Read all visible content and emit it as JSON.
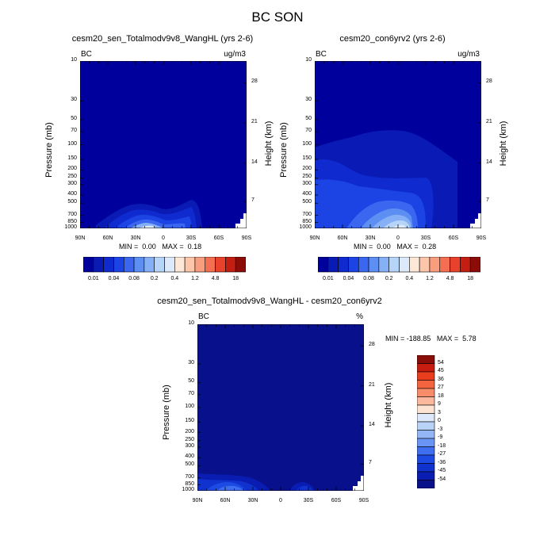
{
  "title": "BC SON",
  "colors": {
    "abs": [
      "#00009c",
      "#0a1ab4",
      "#0f2bd0",
      "#1c44e4",
      "#3a66f0",
      "#5d8ef2",
      "#86b0f5",
      "#b6d4f8",
      "#dbe9fb",
      "#fde8d8",
      "#fbc6aa",
      "#f89d7e",
      "#f46e52",
      "#e8412c",
      "#c21f12",
      "#8c0c08"
    ],
    "diff": [
      "#08108c",
      "#0a1db2",
      "#1032cf",
      "#1d4ae3",
      "#3f6ef1",
      "#6995f4",
      "#93b6f6",
      "#b9d2f8",
      "#dde9fb",
      "#fde4d2",
      "#fbb89c",
      "#f88c68",
      "#f4643f",
      "#ea3d1d",
      "#c81c10",
      "#8a0d07"
    ]
  },
  "colorbar_abs": {
    "labels": [
      "0.01",
      "0.04",
      "0.08",
      "0.2",
      "0.4",
      "1.2",
      "4.8",
      "18"
    ]
  },
  "colorbar_diff": {
    "labels": [
      "54",
      "45",
      "36",
      "27",
      "18",
      "9",
      "3",
      "0",
      "-3",
      "-9",
      "-18",
      "-27",
      "-36",
      "-45",
      "-54"
    ]
  },
  "panels": [
    {
      "title": "cesm20_sen_Totalmodv9v8_WangHL (yrs 2-6)",
      "variable": "BC",
      "units": "ug/m3",
      "min": "0.00",
      "max": "0.18",
      "ylabel": "Pressure (mb)",
      "ylabel_right": "Height (km)"
    },
    {
      "title": "cesm20_con6yrv2 (yrs 2-6)",
      "variable": "BC",
      "units": "ug/m3",
      "min": "0.00",
      "max": "0.28",
      "ylabel": "Pressure (mb)",
      "ylabel_right": "Height (km)"
    },
    {
      "title": "cesm20_sen_Totalmodv9v8_WangHL - cesm20_con6yrv2",
      "variable": "BC",
      "units": "%",
      "min": "-188.85",
      "max": "5.78",
      "ylabel": "Pressure (mb)",
      "ylabel_right": "Height (km)"
    }
  ],
  "labels": {
    "min": "MIN =",
    "max": "MAX ="
  },
  "chart_data": [
    {
      "type": "heatmap",
      "title": "cesm20_sen_Totalmodv9v8_WangHL (yrs 2-6)",
      "xlabel": "",
      "ylabel": "Pressure (mb)",
      "ylabel_right": "Height (km)",
      "x_ticks": [
        "90N",
        "60N",
        "30N",
        "0",
        "30S",
        "60S",
        "90S"
      ],
      "y_ticks": [
        "10",
        "30",
        "50",
        "70",
        "100",
        "150",
        "200",
        "250",
        "300",
        "400",
        "500",
        "700",
        "850",
        "1000"
      ],
      "y_ticks_right": [
        "28",
        "21",
        "14",
        "7"
      ],
      "xlim": [
        90,
        -90
      ],
      "ylim_mb": [
        1000,
        10
      ],
      "y_scale": "log",
      "min": 0.0,
      "max": 0.18,
      "contour_levels": [
        0.01,
        0.02,
        0.04,
        0.06,
        0.08,
        0.1,
        0.2,
        0.3,
        0.4,
        0.8,
        1.2,
        2.4,
        4.8,
        9.6,
        18
      ],
      "legend": "colorbar bottom"
    },
    {
      "type": "heatmap",
      "title": "cesm20_con6yrv2 (yrs 2-6)",
      "xlabel": "",
      "ylabel": "Pressure (mb)",
      "ylabel_right": "Height (km)",
      "x_ticks": [
        "90N",
        "60N",
        "30N",
        "0",
        "30S",
        "60S",
        "90S"
      ],
      "y_ticks": [
        "10",
        "30",
        "50",
        "70",
        "100",
        "150",
        "200",
        "250",
        "300",
        "400",
        "500",
        "700",
        "850",
        "1000"
      ],
      "y_ticks_right": [
        "28",
        "21",
        "14",
        "7"
      ],
      "xlim": [
        90,
        -90
      ],
      "ylim_mb": [
        1000,
        10
      ],
      "y_scale": "log",
      "min": 0.0,
      "max": 0.28,
      "contour_levels": [
        0.01,
        0.02,
        0.04,
        0.06,
        0.08,
        0.1,
        0.2,
        0.3,
        0.4,
        0.8,
        1.2,
        2.4,
        4.8,
        9.6,
        18
      ],
      "legend": "colorbar bottom"
    },
    {
      "type": "heatmap",
      "title": "cesm20_sen_Totalmodv9v8_WangHL - cesm20_con6yrv2",
      "xlabel": "",
      "ylabel": "Pressure (mb)",
      "ylabel_right": "Height (km)",
      "x_ticks": [
        "90N",
        "60N",
        "30N",
        "0",
        "30S",
        "60S",
        "90S"
      ],
      "y_ticks": [
        "10",
        "30",
        "50",
        "70",
        "100",
        "150",
        "200",
        "250",
        "300",
        "400",
        "500",
        "700",
        "850",
        "1000"
      ],
      "y_ticks_right": [
        "28",
        "21",
        "14",
        "7"
      ],
      "xlim": [
        90,
        -90
      ],
      "ylim_mb": [
        1000,
        10
      ],
      "y_scale": "log",
      "min": -188.85,
      "max": 5.78,
      "contour_levels": [
        -54,
        -45,
        -36,
        -27,
        -18,
        -9,
        -3,
        0,
        3,
        9,
        18,
        27,
        36,
        45,
        54
      ],
      "legend": "colorbar right"
    }
  ]
}
